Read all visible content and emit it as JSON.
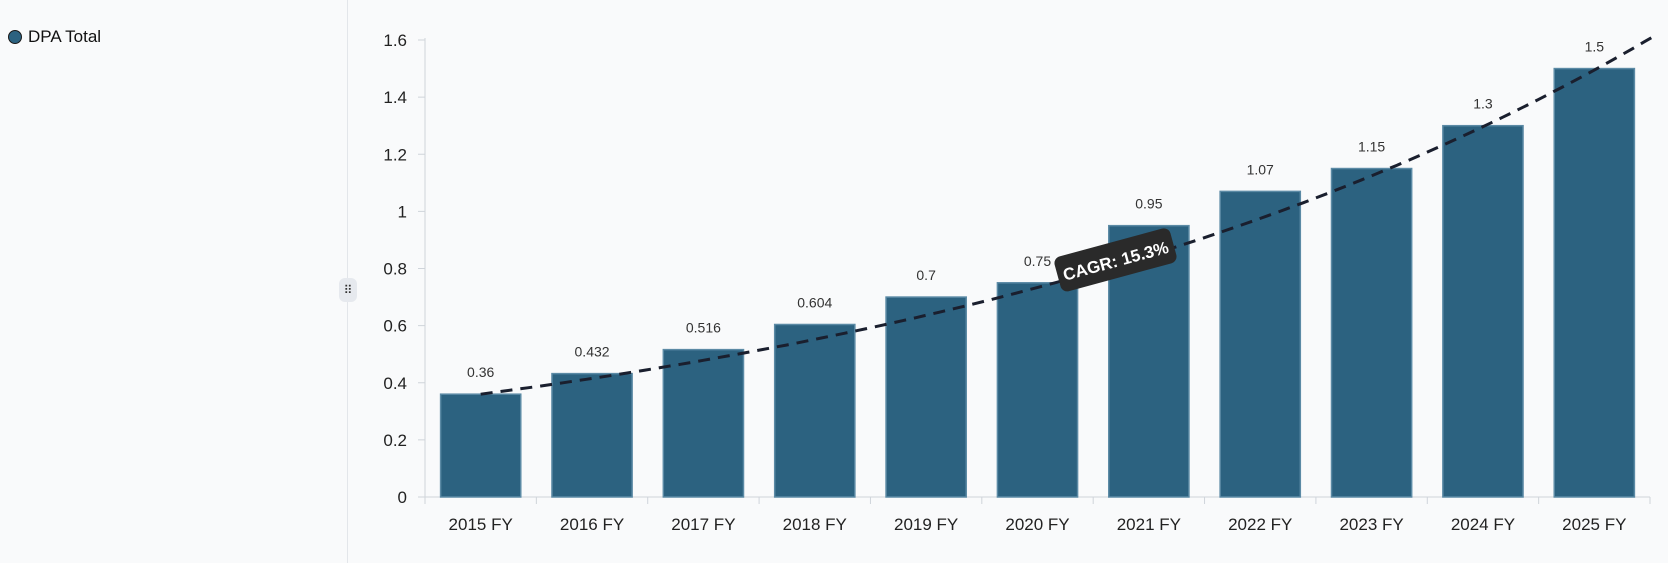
{
  "legend": {
    "label": "DPA Total",
    "color": "#2c6280"
  },
  "handle": {
    "icon": "drag-handle-icon",
    "glyph": "⠿"
  },
  "chart_data": {
    "type": "bar",
    "title": "",
    "xlabel": "",
    "ylabel": "",
    "categories": [
      "2015 FY",
      "2016 FY",
      "2017 FY",
      "2018 FY",
      "2019 FY",
      "2020 FY",
      "2021 FY",
      "2022 FY",
      "2023 FY",
      "2024 FY",
      "2025 FY"
    ],
    "series": [
      {
        "name": "DPA Total",
        "values": [
          0.36,
          0.432,
          0.516,
          0.604,
          0.7,
          0.75,
          0.95,
          1.07,
          1.15,
          1.3,
          1.5
        ],
        "labels": [
          "0.36",
          "0.432",
          "0.516",
          "0.604",
          "0.7",
          "0.75",
          "0.95",
          "1.07",
          "1.15",
          "1.3",
          "1.5"
        ],
        "color": "#2c6280"
      }
    ],
    "ylim": [
      0,
      1.6
    ],
    "yticks": [
      0,
      0.2,
      0.4,
      0.6,
      0.8,
      1,
      1.2,
      1.4,
      1.6
    ],
    "ytick_labels": [
      "0",
      "0.2",
      "0.4",
      "0.6",
      "0.8",
      "1",
      "1.2",
      "1.4",
      "1.6"
    ],
    "grid": false,
    "legend_position": "left",
    "trendline": {
      "style": "dashed",
      "color": "#1a1f2e",
      "annotation": "CAGR: 15.3%",
      "cagr_percent": 15.3,
      "start_value": 0.36
    }
  }
}
